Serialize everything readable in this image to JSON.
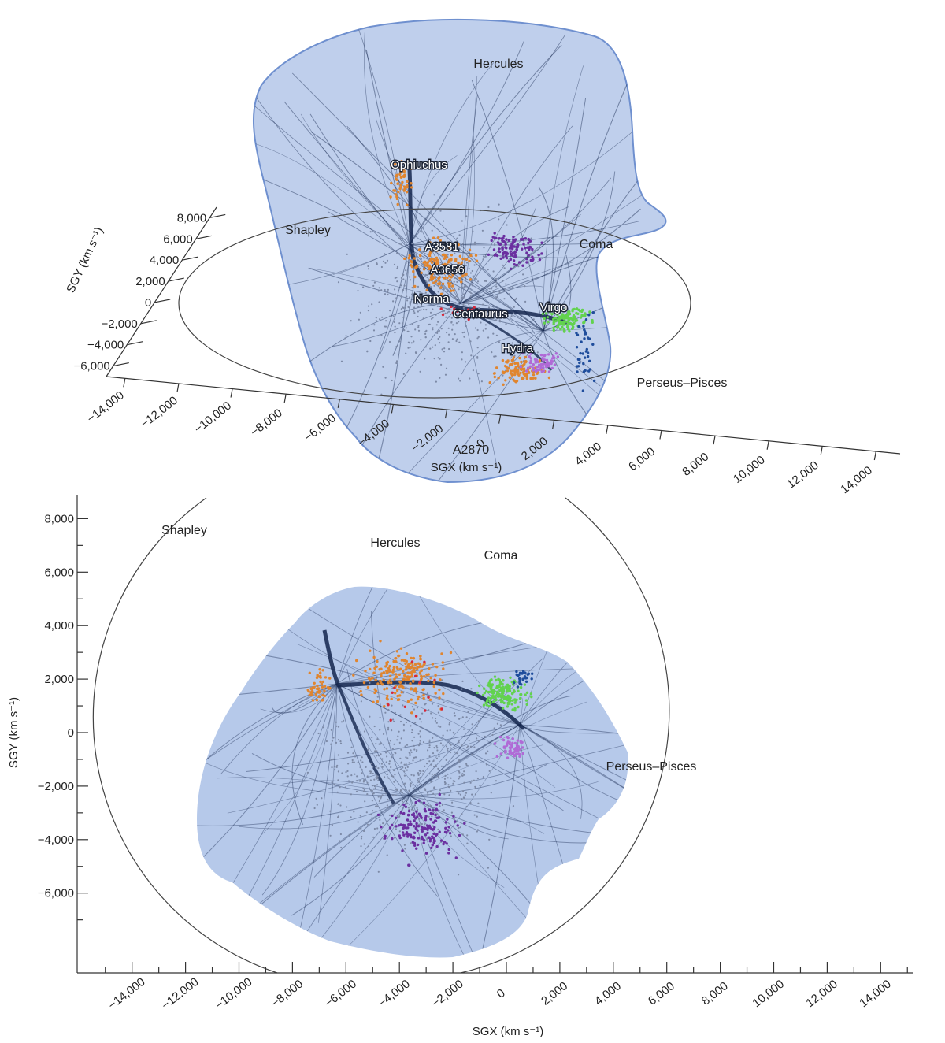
{
  "chart_data": [
    {
      "type": "scatter",
      "panel": "top",
      "projection": "3d-perspective",
      "xlabel": "SGX (km s⁻¹)",
      "ylabel": "SGY (km s⁻¹)",
      "xlim": [
        -14000,
        14000
      ],
      "ylim": [
        -6000,
        8000
      ],
      "x_ticks": [
        "−14,000",
        "−12,000",
        "−10,000",
        "−8,000",
        "−6,000",
        "−4,000",
        "−2,000",
        "0",
        "2,000",
        "4,000",
        "6,000",
        "8,000",
        "10,000",
        "12,000",
        "14,000"
      ],
      "y_ticks": [
        "8,000",
        "6,000",
        "4,000",
        "2,000",
        "0",
        "−2,000",
        "−4,000",
        "−6,000"
      ],
      "annotations": [
        "Hercules",
        "Ophiuchus",
        "Shapley",
        "A3581",
        "Coma",
        "A3656",
        "Norma",
        "Virgo",
        "Centaurus",
        "Hydra",
        "Perseus–Pisces",
        "A2870"
      ],
      "grid": false,
      "colors": {
        "basin": "#a9bfe6",
        "basin_edge": "#6f90cf",
        "streamlines": "#14264d",
        "gray": "#7d8aa6",
        "orange": "#e0852f",
        "purple": "#6b2fa0",
        "green": "#62d24e",
        "red": "#d6283a",
        "blue": "#1f4d9c",
        "violet": "#b06ad6"
      }
    },
    {
      "type": "scatter",
      "panel": "bottom",
      "projection": "2d",
      "xlabel": "SGX (km s⁻¹)",
      "ylabel": "SGY (km s⁻¹)",
      "xlim": [
        -16000,
        15500
      ],
      "ylim": [
        -9000,
        8500
      ],
      "x_ticks": [
        "−14,000",
        "−12,000",
        "−10,000",
        "−8,000",
        "−6,000",
        "−4,000",
        "−2,000",
        "0",
        "2,000",
        "4,000",
        "6,000",
        "8,000",
        "10,000",
        "12,000",
        "14,000"
      ],
      "y_ticks": [
        "8,000",
        "6,000",
        "4,000",
        "2,000",
        "0",
        "−2,000",
        "−4,000",
        "−6,000"
      ],
      "annotations": [
        "Shapley",
        "Hercules",
        "Coma",
        "Perseus–Pisces"
      ],
      "grid": false,
      "colors": {
        "basin": "#a9bfe6",
        "streamlines": "#14264d",
        "gray": "#7d8aa6",
        "orange": "#e0852f",
        "purple": "#6b2fa0",
        "green": "#62d24e",
        "red": "#d6283a",
        "blue": "#1f4d9c",
        "violet": "#b06ad6"
      }
    }
  ]
}
